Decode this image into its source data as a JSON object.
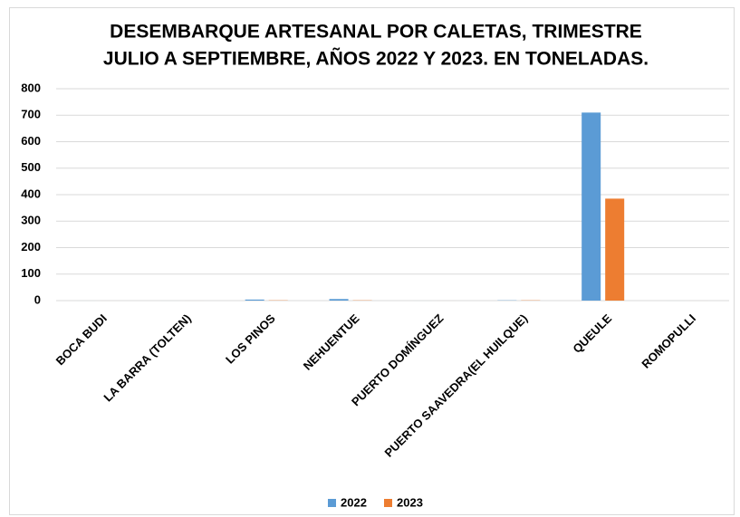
{
  "chart_data": {
    "type": "bar",
    "title": [
      "DESEMBARQUE ARTESANAL POR CALETAS, TRIMESTRE",
      "JULIO A SEPTIEMBRE, AÑOS 2022 Y 2023. EN TONELADAS."
    ],
    "categories": [
      "BOCA BUDI",
      "LA BARRA (TOLTEN)",
      "LOS PINOS",
      "NEHUENTUE",
      "PUERTO DOMÍNGUEZ",
      "PUERTO SAAVEDRA(EL HUILQUE)",
      "QUEULE",
      "ROMOPULLI"
    ],
    "series": [
      {
        "name": "2022",
        "color": "#5b9bd5",
        "values": [
          0,
          0,
          4,
          6,
          0,
          1,
          710,
          0
        ]
      },
      {
        "name": "2023",
        "color": "#ed7d31",
        "values": [
          0,
          0,
          1,
          1,
          0,
          1,
          385,
          0
        ]
      }
    ],
    "ylim": [
      0,
      800
    ],
    "yticks": [
      0,
      100,
      200,
      300,
      400,
      500,
      600,
      700,
      800
    ],
    "grid": true,
    "legend": "bottom"
  }
}
